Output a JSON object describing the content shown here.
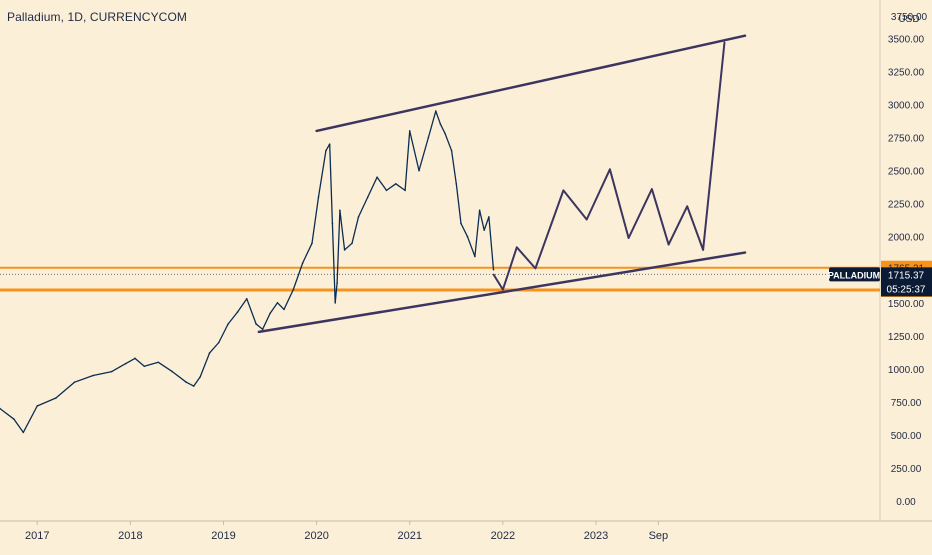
{
  "symbol": {
    "title": "Palladium, 1D, CURRENCYCOM"
  },
  "price_axis": {
    "currency": "USD",
    "top_label": "3750.00"
  },
  "chart_data": {
    "type": "line",
    "title": "Palladium, 1D, CURRENCYCOM",
    "ylabel": "USD",
    "ylim": [
      -150,
      3790
    ],
    "y_ticks": [
      0,
      250,
      500,
      750,
      1000,
      1250,
      1500,
      1750,
      2000,
      2250,
      2500,
      2750,
      3000,
      3250,
      3500
    ],
    "x_ticks": [
      "2017",
      "2018",
      "2019",
      "2020",
      "2021",
      "2022",
      "2023",
      "Sep"
    ],
    "x_tick_years": [
      2017.0,
      2018.0,
      2019.0,
      2020.0,
      2021.0,
      2022.0,
      2023.0,
      2023.67
    ],
    "xlim": [
      2016.6,
      2026.05
    ],
    "grid": false,
    "series": [
      {
        "role": "price",
        "color": "#0c2d52",
        "x": [
          2016.6,
          2016.75,
          2016.85,
          2017.0,
          2017.2,
          2017.4,
          2017.6,
          2017.8,
          2017.95,
          2018.05,
          2018.15,
          2018.3,
          2018.45,
          2018.6,
          2018.68,
          2018.75,
          2018.85,
          2018.95,
          2019.05,
          2019.15,
          2019.25,
          2019.35,
          2019.42,
          2019.5,
          2019.58,
          2019.65,
          2019.75,
          2019.85,
          2019.95,
          2020.02,
          2020.1,
          2020.14,
          2020.17,
          2020.2,
          2020.22,
          2020.25,
          2020.3,
          2020.38,
          2020.45,
          2020.55,
          2020.65,
          2020.75,
          2020.85,
          2020.95,
          2021.0,
          2021.1,
          2021.2,
          2021.28,
          2021.33,
          2021.38,
          2021.45,
          2021.5,
          2021.55,
          2021.62,
          2021.7,
          2021.75,
          2021.8,
          2021.85,
          2021.9
        ],
        "values": [
          700,
          620,
          520,
          720,
          780,
          900,
          950,
          980,
          1040,
          1080,
          1020,
          1050,
          980,
          900,
          870,
          940,
          1120,
          1200,
          1340,
          1430,
          1530,
          1340,
          1300,
          1420,
          1500,
          1450,
          1600,
          1800,
          1950,
          2300,
          2650,
          2700,
          2100,
          1500,
          1650,
          2200,
          1900,
          1950,
          2150,
          2300,
          2450,
          2350,
          2400,
          2350,
          2800,
          2500,
          2750,
          2950,
          2850,
          2780,
          2650,
          2400,
          2100,
          2000,
          1850,
          2200,
          2050,
          2150,
          1750
        ]
      },
      {
        "role": "projection",
        "color": "#3b3560",
        "x": [
          2021.9,
          2022.0,
          2022.15,
          2022.35,
          2022.65,
          2022.9,
          2023.15,
          2023.35,
          2023.6,
          2023.78,
          2023.98,
          2024.15,
          2024.38
        ],
        "values": [
          1715,
          1600,
          1920,
          1760,
          2350,
          2130,
          2510,
          1990,
          2360,
          1940,
          2230,
          1900,
          3470
        ]
      }
    ],
    "trendlines": [
      {
        "role": "channel-top",
        "color": "#3b3560",
        "x": [
          2020.0,
          2024.6
        ],
        "values": [
          2800,
          3520
        ]
      },
      {
        "role": "channel-bottom",
        "color": "#3b3560",
        "x": [
          2019.38,
          2024.6
        ],
        "values": [
          1280,
          1880
        ]
      }
    ],
    "horizontal_levels": [
      {
        "value": 1765.21,
        "label": "1765.21",
        "color": "#f7931a"
      },
      {
        "value": 1596.94,
        "label": "1596.94",
        "color": "#f7931a"
      }
    ],
    "last_price": {
      "symbol": "PALLADIUM",
      "value": 1715.37,
      "label": "1715.37",
      "countdown": "05:25:37",
      "color": "#0b1b36"
    }
  }
}
